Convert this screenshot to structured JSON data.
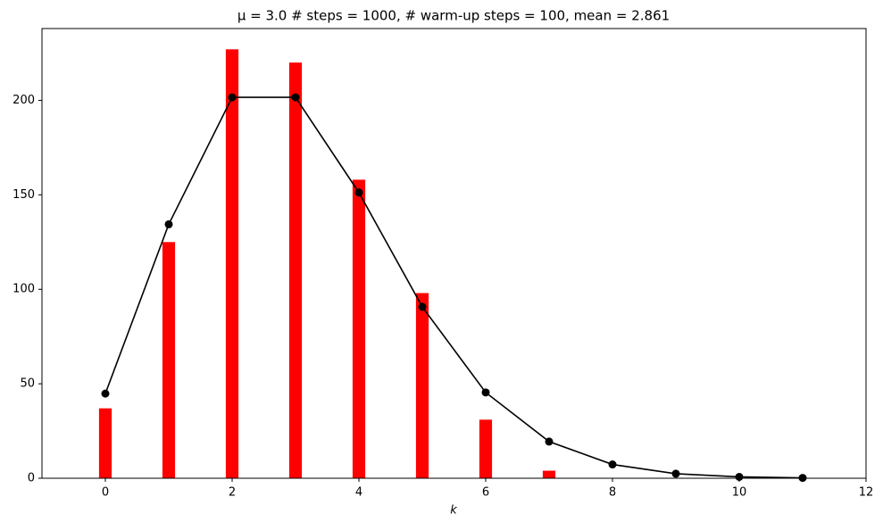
{
  "chart_data": {
    "type": "bar",
    "title": "μ = 3.0  # steps = 1000, # warm-up steps = 100, mean = 2.861",
    "xlabel": "k",
    "xlim": [
      -1,
      12
    ],
    "xticks": [
      0,
      2,
      4,
      6,
      8,
      10,
      12
    ],
    "ylim": [
      0,
      238
    ],
    "yticks": [
      0,
      50,
      100,
      150,
      200
    ],
    "series": [
      {
        "type": "bar",
        "color": "#ff0000",
        "x": [
          0,
          1,
          2,
          3,
          4,
          5,
          6,
          7
        ],
        "values": [
          37,
          125,
          227,
          220,
          158,
          98,
          31,
          4
        ]
      },
      {
        "type": "line",
        "color": "#000000",
        "x": [
          0,
          1,
          2,
          3,
          4,
          5,
          6,
          7,
          8,
          9,
          10,
          11
        ],
        "values": [
          44.8,
          134.4,
          201.6,
          201.6,
          151.2,
          90.7,
          45.4,
          19.4,
          7.3,
          2.4,
          0.73,
          0.2
        ]
      }
    ]
  }
}
